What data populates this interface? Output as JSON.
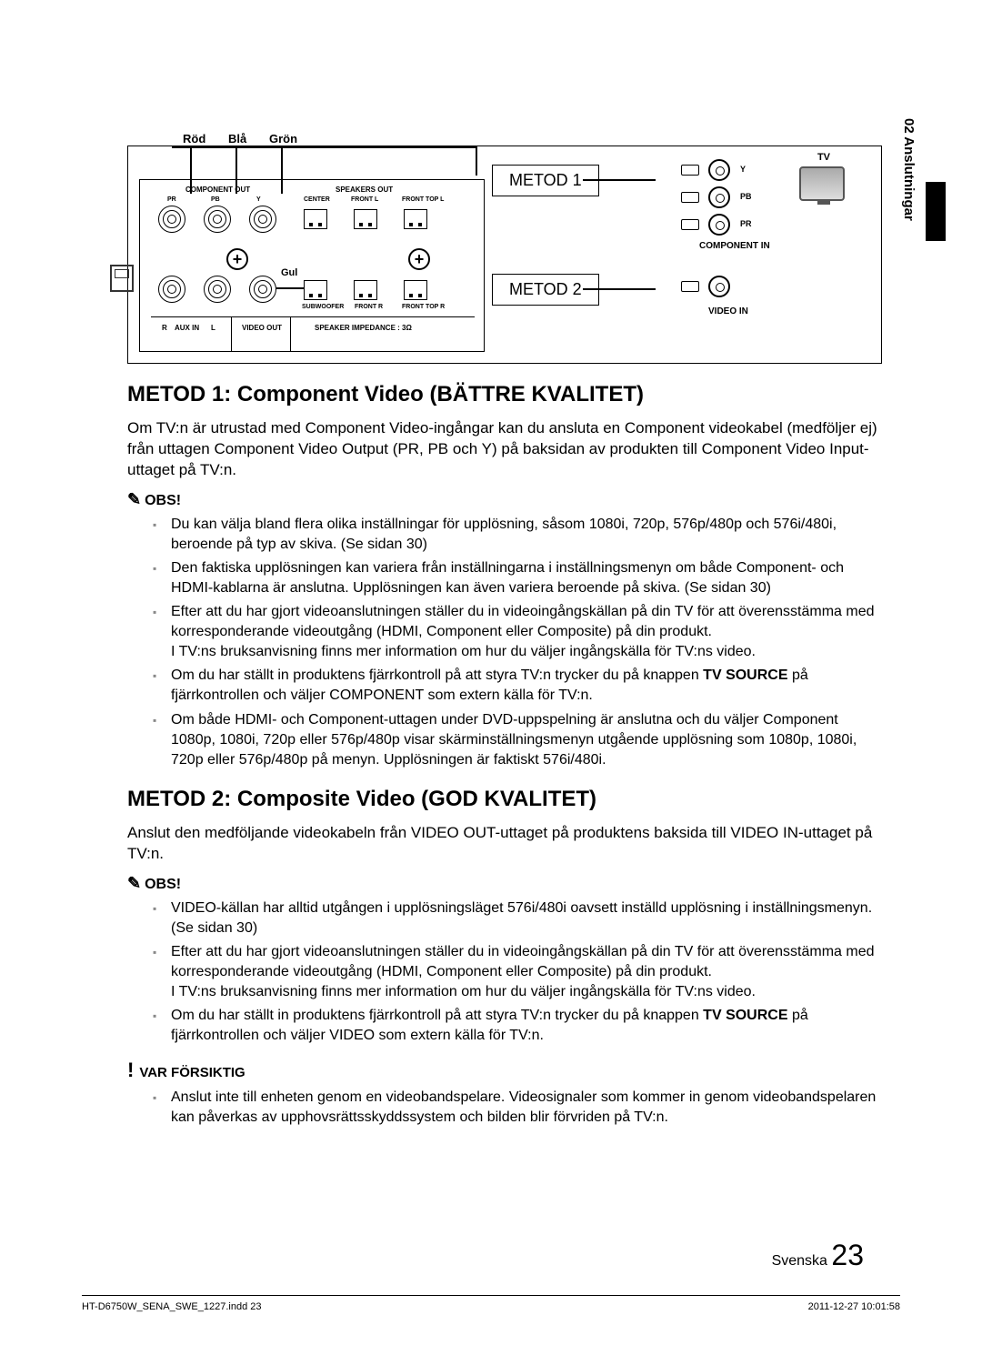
{
  "side_tab": "02  Anslutningar",
  "diagram": {
    "colors": {
      "red": "Röd",
      "blue": "Blå",
      "green": "Grön"
    },
    "method1_label": "METOD 1",
    "method2_label": "METOD 2",
    "component_out": "COMPONENT OUT",
    "speakers_out": "SPEAKERS OUT",
    "labels_top": {
      "pr": "PR",
      "pb": "PB",
      "y_out": "Y",
      "center": "CENTER",
      "front_l": "FRONT L",
      "fronttop_l": "FRONT TOP L"
    },
    "labels_bot": {
      "subwoofer": "SUBWOOFER",
      "front_r": "FRONT R",
      "fronttop_r": "FRONT TOP R"
    },
    "aux": {
      "r": "R",
      "l": "L",
      "aux_in": "AUX IN"
    },
    "video_out": "VIDEO OUT",
    "speaker_imp": "SPEAKER IMPEDANCE : 3Ω",
    "gul": "Gul",
    "tv_side": {
      "y": "Y",
      "pb": "PB",
      "pr": "PR",
      "comp_in": "COMPONENT  IN",
      "video_in": "VIDEO  IN",
      "tv": "TV"
    }
  },
  "h_method1": "METOD 1: Component Video (BÄTTRE KVALITET)",
  "p_method1": "Om TV:n är utrustad med Component Video-ingångar kan du ansluta en Component videokabel (medföljer ej) från uttagen Component Video Output (PR, PB och Y) på baksidan av produkten till Component Video Input-uttaget på TV:n.",
  "obs_label": "OBS!",
  "notes1": [
    "Du kan välja bland flera olika inställningar för upplösning, såsom 1080i, 720p, 576p/480p och 576i/480i, beroende på typ av skiva. (Se sidan 30)",
    "Den faktiska upplösningen kan variera från inställningarna i inställningsmenyn om både Component- och HDMI-kablarna är anslutna. Upplösningen kan även variera beroende på skiva. (Se sidan 30)",
    "Efter att du har gjort videoanslutningen ställer du in videoingångskällan på din TV för att överensstämma med korresponderande videoutgång (HDMI, Component eller Composite) på din produkt.\nI TV:ns bruksanvisning finns mer information om hur du väljer ingångskälla för TV:ns video.",
    "Om du har ställt in produktens fjärrkontroll på att styra TV:n trycker du på knappen TV SOURCE på fjärrkontrollen och väljer COMPONENT som extern källa för TV:n.",
    "Om både HDMI- och Component-uttagen under DVD-uppspelning är anslutna och du väljer Component 1080p, 1080i, 720p eller 576p/480p visar skärminställningsmenyn utgående upplösning som 1080p, 1080i, 720p eller 576p/480p på menyn. Upplösningen är faktiskt 576i/480i."
  ],
  "h_method2": "METOD 2: Composite Video (GOD KVALITET)",
  "p_method2": "Anslut den medföljande videokabeln från VIDEO OUT-uttaget på produktens baksida till VIDEO IN-uttaget på TV:n.",
  "notes2": [
    "VIDEO-källan har alltid utgången i upplösningsläget 576i/480i oavsett inställd upplösning i inställningsmenyn. (Se sidan 30)",
    "Efter att du har gjort videoanslutningen ställer du in videoingångskällan på din TV för att överensstämma med korresponderande videoutgång (HDMI, Component eller Composite) på din produkt.\nI TV:ns bruksanvisning finns mer information om hur du väljer ingångskälla för TV:ns video.",
    "Om du har ställt in produktens fjärrkontroll på att styra TV:n trycker du på knappen TV SOURCE på fjärrkontrollen och väljer VIDEO som extern källa för TV:n."
  ],
  "caution_label": "VAR FÖRSIKTIG",
  "caution_items": [
    "Anslut inte till enheten genom en videobandspelare. Videosignaler som kommer in genom videobandspelaren kan påverkas av upphovsrättsskyddssystem och bilden blir förvriden på TV:n."
  ],
  "page_lang": "Svenska",
  "page_num": "23",
  "footer_left": "HT-D6750W_SENA_SWE_1227.indd   23",
  "footer_right": "2011-12-27     10:01:58"
}
